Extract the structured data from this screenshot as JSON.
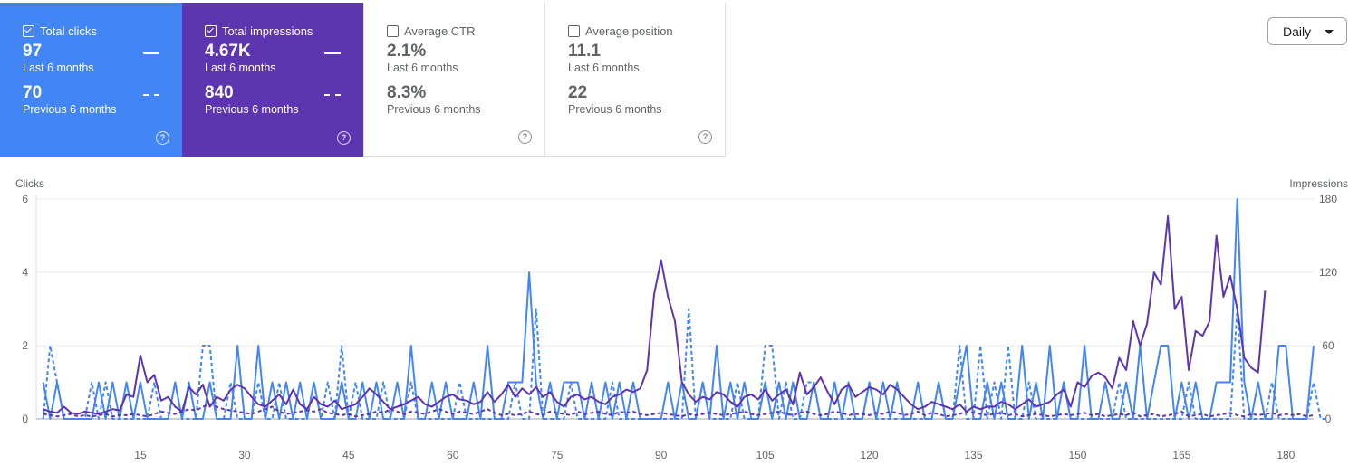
{
  "cards": {
    "clicks": {
      "title": "Total clicks",
      "checked": true,
      "value": "97",
      "value_label": "Last 6 months",
      "prev_value": "70",
      "prev_label": "Previous 6 months",
      "color": "#4285f4"
    },
    "impressions": {
      "title": "Total impressions",
      "checked": true,
      "value": "4.67K",
      "value_label": "Last 6 months",
      "prev_value": "840",
      "prev_label": "Previous 6 months",
      "color": "#5e35b1"
    },
    "ctr": {
      "title": "Average CTR",
      "checked": false,
      "value": "2.1%",
      "value_label": "Last 6 months",
      "prev_value": "8.3%",
      "prev_label": "Previous 6 months"
    },
    "position": {
      "title": "Average position",
      "checked": false,
      "value": "11.1",
      "value_label": "Last 6 months",
      "prev_value": "22",
      "prev_label": "Previous 6 months"
    }
  },
  "help_glyph": "?",
  "granularity": {
    "selected": "Daily"
  },
  "chart_data": {
    "type": "line",
    "x_ticks": [
      15,
      30,
      45,
      60,
      75,
      90,
      105,
      120,
      135,
      150,
      165,
      180
    ],
    "xlim": [
      0,
      184
    ],
    "y_left": {
      "title": "Clicks",
      "ylim": [
        0,
        6
      ],
      "ticks": [
        0,
        2,
        4,
        6
      ]
    },
    "y_right": {
      "title": "Impressions",
      "ylim": [
        0,
        180
      ],
      "ticks": [
        0,
        60,
        120,
        180
      ]
    },
    "grid": true,
    "series": [
      {
        "metric": "clicks",
        "period": "last",
        "axis": "left",
        "style": "solid",
        "color": "#4285f4",
        "values": [
          1,
          0,
          1,
          0,
          0,
          0,
          0,
          0,
          1,
          0,
          1,
          0,
          1,
          0,
          1,
          0,
          0,
          0,
          0,
          1,
          0,
          1,
          0,
          0,
          1,
          0,
          0,
          0,
          2,
          0,
          0,
          2,
          0,
          1,
          0,
          1,
          0,
          1,
          0,
          1,
          0,
          0,
          0,
          1,
          0,
          0,
          1,
          0,
          1,
          0,
          0,
          1,
          0,
          2,
          0,
          0,
          1,
          0,
          1,
          0,
          0,
          0,
          1,
          0,
          2,
          0,
          0,
          1,
          1,
          1,
          4,
          1,
          0,
          1,
          0,
          1,
          1,
          1,
          0,
          1,
          0,
          1,
          0,
          1,
          0,
          1,
          0,
          0,
          0,
          0,
          1,
          0,
          1,
          0,
          0,
          1,
          0,
          2,
          0,
          1,
          0,
          1,
          0,
          0,
          1,
          0,
          1,
          0,
          1,
          0,
          0,
          1,
          0,
          0,
          1,
          0,
          1,
          0,
          0,
          1,
          0,
          1,
          0,
          1,
          0,
          0,
          1,
          0,
          0,
          1,
          0,
          0,
          1,
          2,
          0,
          0,
          1,
          0,
          1,
          0,
          0,
          2,
          0,
          1,
          0,
          2,
          0,
          1,
          0,
          0,
          2,
          0,
          0,
          1,
          0,
          0,
          1,
          0,
          2,
          0,
          1,
          2,
          2,
          0,
          1,
          0,
          1,
          0,
          0,
          1,
          1,
          1,
          6,
          1,
          0,
          1,
          0,
          0,
          2,
          2,
          0,
          0,
          0,
          2
        ]
      },
      {
        "metric": "clicks",
        "period": "previous",
        "axis": "left",
        "style": "dashed",
        "color": "#4285f4",
        "values": [
          0,
          2,
          1,
          0,
          0,
          0,
          0,
          1,
          0,
          1,
          0,
          0,
          0,
          0,
          0,
          0,
          1,
          0,
          0,
          1,
          0,
          0,
          0,
          2,
          2,
          0,
          0,
          1,
          0,
          0,
          0,
          1,
          0,
          0,
          1,
          0,
          0,
          0,
          0,
          1,
          0,
          1,
          0,
          2,
          0,
          1,
          0,
          0,
          0,
          1,
          0,
          0,
          0,
          1,
          0,
          0,
          0,
          0,
          0,
          0,
          1,
          0,
          0,
          0,
          0,
          0,
          0,
          0,
          1,
          0,
          0,
          3,
          0,
          0,
          0,
          0,
          1,
          0,
          0,
          0,
          0,
          0,
          1,
          0,
          0,
          0,
          0,
          0,
          0,
          0,
          0,
          0,
          0,
          3,
          0,
          1,
          0,
          0,
          0,
          0,
          1,
          0,
          0,
          0,
          2,
          2,
          0,
          1,
          0,
          0,
          1,
          1,
          0,
          0,
          0,
          0,
          0,
          0,
          0,
          1,
          0,
          0,
          0,
          0,
          0,
          0,
          0,
          0,
          0,
          1,
          0,
          0,
          2,
          0,
          0,
          2,
          0,
          1,
          0,
          2,
          0,
          0,
          1,
          0,
          0,
          0,
          0,
          1,
          0,
          0,
          0,
          0,
          0,
          0,
          0,
          1,
          0,
          0,
          0,
          0,
          0,
          0,
          0,
          0,
          0,
          1,
          0,
          0,
          0,
          0,
          0,
          0,
          3,
          0,
          0,
          0,
          0,
          1,
          0,
          0,
          0,
          0,
          0,
          1,
          0,
          0
        ]
      },
      {
        "metric": "impressions",
        "period": "last",
        "axis": "right",
        "style": "solid",
        "color": "#5e35b1",
        "values": [
          8,
          6,
          5,
          10,
          5,
          4,
          6,
          5,
          4,
          6,
          8,
          7,
          20,
          18,
          52,
          30,
          36,
          15,
          18,
          10,
          6,
          26,
          20,
          28,
          10,
          18,
          15,
          24,
          28,
          25,
          18,
          12,
          10,
          15,
          20,
          12,
          24,
          12,
          8,
          18,
          12,
          10,
          15,
          8,
          10,
          12,
          18,
          25,
          20,
          14,
          8,
          10,
          12,
          15,
          18,
          12,
          10,
          14,
          18,
          20,
          16,
          15,
          12,
          14,
          22,
          14,
          20,
          28,
          18,
          25,
          20,
          26,
          18,
          22,
          14,
          10,
          18,
          20,
          16,
          18,
          14,
          12,
          18,
          20,
          24,
          22,
          25,
          40,
          102,
          130,
          100,
          80,
          30,
          20,
          14,
          18,
          16,
          22,
          20,
          14,
          10,
          18,
          20,
          16,
          24,
          15,
          20,
          24,
          12,
          38,
          20,
          26,
          34,
          22,
          12,
          24,
          28,
          18,
          22,
          26,
          24,
          20,
          28,
          24,
          18,
          12,
          8,
          10,
          14,
          12,
          10,
          8,
          12,
          6,
          10,
          8,
          10,
          10,
          14,
          12,
          8,
          12,
          16,
          10,
          12,
          14,
          20,
          24,
          10,
          30,
          26,
          35,
          38,
          34,
          25,
          50,
          40,
          80,
          60,
          78,
          120,
          110,
          166,
          90,
          100,
          40,
          72,
          68,
          80,
          150,
          100,
          117,
          90,
          50,
          42,
          38,
          105
        ]
      },
      {
        "metric": "impressions",
        "period": "previous",
        "axis": "right",
        "style": "dashed",
        "color": "#5e35b1",
        "values": [
          4,
          3,
          2,
          3,
          4,
          2,
          3,
          2,
          3,
          4,
          2,
          3,
          3,
          4,
          3,
          2,
          4,
          6,
          5,
          4,
          6,
          8,
          7,
          10,
          12,
          10,
          8,
          7,
          6,
          5,
          4,
          6,
          8,
          10,
          6,
          4,
          5,
          6,
          7,
          6,
          8,
          5,
          4,
          3,
          4,
          2,
          3,
          4,
          6,
          5,
          8,
          6,
          4,
          6,
          5,
          4,
          6,
          8,
          6,
          4,
          6,
          5,
          4,
          6,
          8,
          5,
          3,
          4,
          3,
          4,
          6,
          4,
          3,
          6,
          5,
          4,
          3,
          6,
          4,
          5,
          6,
          4,
          3,
          6,
          5,
          6,
          4,
          3,
          4,
          5,
          4,
          3,
          2,
          4,
          3,
          4,
          5,
          4,
          3,
          4,
          5,
          6,
          4,
          3,
          4,
          5,
          6,
          4,
          3,
          5,
          6,
          4,
          3,
          4,
          6,
          5,
          3,
          4,
          4,
          3,
          5,
          4,
          6,
          5,
          3,
          4,
          6,
          3,
          5,
          4,
          2,
          3,
          4,
          6,
          5,
          4,
          3,
          4,
          5,
          3,
          4,
          2,
          3,
          4,
          3,
          2,
          3,
          4,
          3,
          4,
          5,
          3,
          4,
          2,
          3,
          4,
          3,
          5,
          2,
          3,
          4,
          2,
          3,
          4,
          6,
          2,
          3,
          4,
          2,
          3,
          4,
          5,
          3,
          2,
          4,
          3,
          4,
          5,
          3,
          4,
          3,
          4,
          2,
          3
        ]
      }
    ]
  }
}
